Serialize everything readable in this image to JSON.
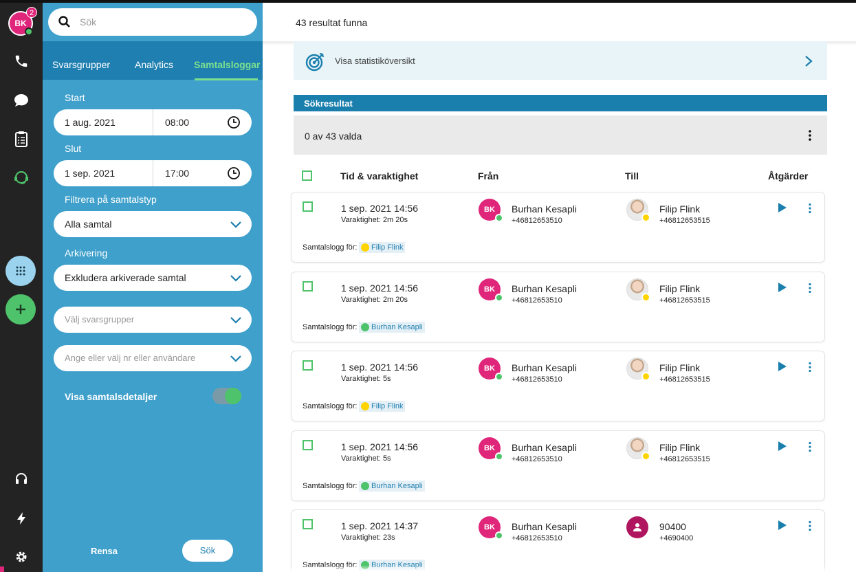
{
  "user": {
    "initials": "BK",
    "notification_count": "2"
  },
  "search": {
    "placeholder": "Sök"
  },
  "tabs": [
    {
      "label": "Svarsgrupper"
    },
    {
      "label": "Analytics"
    },
    {
      "label": "Samtalsloggar"
    }
  ],
  "filters": {
    "start_label": "Start",
    "start_date": "1 aug. 2021",
    "start_time": "08:00",
    "end_label": "Slut",
    "end_date": "1 sep. 2021",
    "end_time": "17:00",
    "calltype_label": "Filtrera på samtalstyp",
    "calltype_value": "Alla samtal",
    "archive_label": "Arkivering",
    "archive_value": "Exkludera arkiverade samtal",
    "groups_placeholder": "Välj svarsgrupper",
    "number_placeholder": "Ange eller välj nr eller användare",
    "details_toggle_label": "Visa samtalsdetaljer",
    "details_toggle_on": true,
    "clear_label": "Rensa",
    "search_label": "Sök"
  },
  "main": {
    "result_count": "43 resultat funna",
    "stats_link": "Visa statistiköversikt",
    "section_title": "Sökresultat",
    "selection_text": "0 av 43 valda",
    "columns": [
      "Tid & varaktighet",
      "Från",
      "Till",
      "Åtgärder"
    ]
  },
  "colors": {
    "accent_blue": "#1a7fad",
    "panel_blue": "#3fa0cb",
    "green": "#4fc36b",
    "pink": "#e0267a",
    "yellow_presence": "#ffd400"
  },
  "calls": [
    {
      "time": "1 sep. 2021 14:56",
      "duration": "Varaktighet: 2m 20s",
      "from_initials": "BK",
      "from_name": "Burhan Kesapli",
      "from_number": "+46812653510",
      "to_name": "Filip Flink",
      "to_number": "+46812653515",
      "to_avatar": "photo",
      "log_label": "Samtalslogg för:",
      "log_owner": "Filip Flink",
      "log_owner_color": "#ffd400"
    },
    {
      "time": "1 sep. 2021 14:56",
      "duration": "Varaktighet: 2m 20s",
      "from_initials": "BK",
      "from_name": "Burhan Kesapli",
      "from_number": "+46812653510",
      "to_name": "Filip Flink",
      "to_number": "+46812653515",
      "to_avatar": "photo",
      "log_label": "Samtalslogg för:",
      "log_owner": "Burhan Kesapli",
      "log_owner_color": "#4fc36b"
    },
    {
      "time": "1 sep. 2021 14:56",
      "duration": "Varaktighet: 5s",
      "from_initials": "BK",
      "from_name": "Burhan Kesapli",
      "from_number": "+46812653510",
      "to_name": "Filip Flink",
      "to_number": "+46812653515",
      "to_avatar": "photo",
      "log_label": "Samtalslogg för:",
      "log_owner": "Filip Flink",
      "log_owner_color": "#ffd400"
    },
    {
      "time": "1 sep. 2021 14:56",
      "duration": "Varaktighet: 5s",
      "from_initials": "BK",
      "from_name": "Burhan Kesapli",
      "from_number": "+46812653510",
      "to_name": "Filip Flink",
      "to_number": "+46812653515",
      "to_avatar": "photo",
      "log_label": "Samtalslogg för:",
      "log_owner": "Burhan Kesapli",
      "log_owner_color": "#4fc36b"
    },
    {
      "time": "1 sep. 2021 14:37",
      "duration": "Varaktighet: 23s",
      "from_initials": "BK",
      "from_name": "Burhan Kesapli",
      "from_number": "+46812653510",
      "to_name": "90400",
      "to_number": "+4690400",
      "to_avatar": "user",
      "log_label": "Samtalslogg för:",
      "log_owner": "Burhan Kesapli",
      "log_owner_color": "#4fc36b"
    }
  ]
}
